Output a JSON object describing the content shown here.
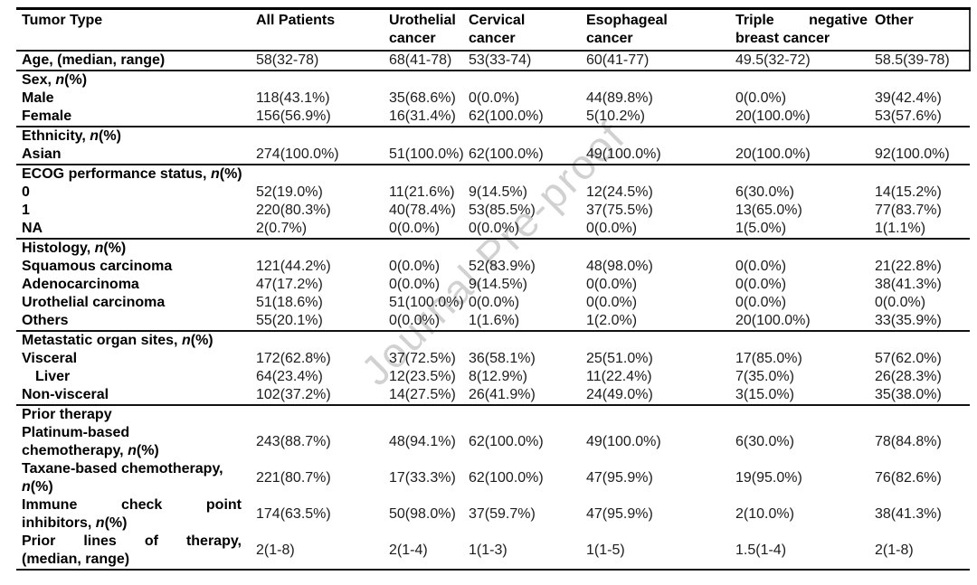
{
  "page": {
    "watermark_text": "Journal Pre-proof",
    "watermark_color": "#c6c6c6",
    "background_color": "#ffffff",
    "text_color": "#000000"
  },
  "table": {
    "header": [
      {
        "lines": [
          "Tumor Type"
        ],
        "justify": false
      },
      {
        "lines": [
          "All Patients"
        ],
        "justify": false
      },
      {
        "lines": [
          "Urothelial",
          "cancer"
        ],
        "justify": false
      },
      {
        "lines": [
          "Cervical",
          "cancer"
        ],
        "justify": false
      },
      {
        "lines": [
          "Esophageal",
          "cancer"
        ],
        "justify": false
      },
      {
        "lines": [
          "Triple negative",
          "breast cancer"
        ],
        "justify": true
      },
      {
        "lines": [
          "Other"
        ],
        "justify": false
      }
    ],
    "rows": [
      {
        "label_lines": [
          "Age, (median, range)"
        ],
        "section": false,
        "indent": false,
        "justify": false,
        "rule_after": true,
        "values": [
          "58(32-78)",
          "68(41-78)",
          "53(33-74)",
          "60(41-77)",
          "49.5(32-72)",
          "58.5(39-78)"
        ]
      },
      {
        "label_lines": [
          "Sex, n(%)"
        ],
        "section": true,
        "indent": false,
        "justify": false,
        "rule_after": false,
        "values": []
      },
      {
        "label_lines": [
          "Male"
        ],
        "section": false,
        "indent": false,
        "justify": false,
        "rule_after": false,
        "values": [
          "118(43.1%)",
          "35(68.6%)",
          "0(0.0%)",
          "44(89.8%)",
          "0(0.0%)",
          "39(42.4%)"
        ]
      },
      {
        "label_lines": [
          "Female"
        ],
        "section": false,
        "indent": false,
        "justify": false,
        "rule_after": true,
        "values": [
          "156(56.9%)",
          "16(31.4%)",
          "62(100.0%)",
          "5(10.2%)",
          "20(100.0%)",
          "53(57.6%)"
        ]
      },
      {
        "label_lines": [
          "Ethnicity, n(%)"
        ],
        "section": true,
        "indent": false,
        "justify": false,
        "rule_after": false,
        "values": []
      },
      {
        "label_lines": [
          "Asian"
        ],
        "section": false,
        "indent": false,
        "justify": false,
        "rule_after": true,
        "values": [
          "274(100.0%)",
          "51(100.0%)",
          "62(100.0%)",
          "49(100.0%)",
          "20(100.0%)",
          "92(100.0%)"
        ]
      },
      {
        "label_lines": [
          "ECOG performance status, n(%)"
        ],
        "section": true,
        "indent": false,
        "justify": false,
        "rule_after": false,
        "values": []
      },
      {
        "label_lines": [
          "0"
        ],
        "section": false,
        "indent": false,
        "justify": false,
        "rule_after": false,
        "values": [
          "52(19.0%)",
          "11(21.6%)",
          "9(14.5%)",
          "12(24.5%)",
          "6(30.0%)",
          "14(15.2%)"
        ]
      },
      {
        "label_lines": [
          "1"
        ],
        "section": false,
        "indent": false,
        "justify": false,
        "rule_after": false,
        "values": [
          "220(80.3%)",
          "40(78.4%)",
          "53(85.5%)",
          "37(75.5%)",
          "13(65.0%)",
          "77(83.7%)"
        ]
      },
      {
        "label_lines": [
          "NA"
        ],
        "section": false,
        "indent": false,
        "justify": false,
        "rule_after": true,
        "values": [
          "2(0.7%)",
          "0(0.0%)",
          "0(0.0%)",
          "0(0.0%)",
          "1(5.0%)",
          "1(1.1%)"
        ]
      },
      {
        "label_lines": [
          "Histology, n(%)"
        ],
        "section": true,
        "indent": false,
        "justify": false,
        "rule_after": false,
        "values": []
      },
      {
        "label_lines": [
          "Squamous carcinoma"
        ],
        "section": false,
        "indent": false,
        "justify": false,
        "rule_after": false,
        "values": [
          "121(44.2%)",
          "0(0.0%)",
          "52(83.9%)",
          "48(98.0%)",
          "0(0.0%)",
          "21(22.8%)"
        ]
      },
      {
        "label_lines": [
          "Adenocarcinoma"
        ],
        "section": false,
        "indent": false,
        "justify": false,
        "rule_after": false,
        "values": [
          "47(17.2%)",
          "0(0.0%)",
          "9(14.5%)",
          "0(0.0%)",
          "0(0.0%)",
          "38(41.3%)"
        ]
      },
      {
        "label_lines": [
          "Urothelial carcinoma"
        ],
        "section": false,
        "indent": false,
        "justify": false,
        "rule_after": false,
        "values": [
          "51(18.6%)",
          "51(100.0%)",
          "0(0.0%)",
          "0(0.0%)",
          "0(0.0%)",
          "0(0.0%)"
        ]
      },
      {
        "label_lines": [
          "Others"
        ],
        "section": false,
        "indent": false,
        "justify": false,
        "rule_after": true,
        "values": [
          "55(20.1%)",
          "0(0.0%)",
          "1(1.6%)",
          "1(2.0%)",
          "20(100.0%)",
          "33(35.9%)"
        ]
      },
      {
        "label_lines": [
          "Metastatic organ sites, n(%)"
        ],
        "section": true,
        "indent": false,
        "justify": false,
        "rule_after": false,
        "values": []
      },
      {
        "label_lines": [
          "Visceral"
        ],
        "section": false,
        "indent": false,
        "justify": false,
        "rule_after": false,
        "values": [
          "172(62.8%)",
          "37(72.5%)",
          "36(58.1%)",
          "25(51.0%)",
          "17(85.0%)",
          "57(62.0%)"
        ]
      },
      {
        "label_lines": [
          "Liver"
        ],
        "section": false,
        "indent": true,
        "justify": false,
        "rule_after": false,
        "values": [
          "64(23.4%)",
          "12(23.5%)",
          "8(12.9%)",
          "11(22.4%)",
          "7(35.0%)",
          "26(28.3%)"
        ]
      },
      {
        "label_lines": [
          "Non-visceral"
        ],
        "section": false,
        "indent": false,
        "justify": false,
        "rule_after": true,
        "values": [
          "102(37.2%)",
          "14(27.5%)",
          "26(41.9%)",
          "24(49.0%)",
          "3(15.0%)",
          "35(38.0%)"
        ]
      },
      {
        "label_lines": [
          "Prior therapy"
        ],
        "section": true,
        "indent": false,
        "justify": false,
        "rule_after": false,
        "values": []
      },
      {
        "label_lines": [
          "Platinum-based",
          "chemotherapy, n(%)"
        ],
        "section": false,
        "indent": false,
        "justify": false,
        "rule_after": false,
        "values": [
          "243(88.7%)",
          "48(94.1%)",
          "62(100.0%)",
          "49(100.0%)",
          "6(30.0%)",
          "78(84.8%)"
        ]
      },
      {
        "label_lines": [
          "Taxane-based chemotherapy,",
          "n(%)"
        ],
        "section": false,
        "indent": false,
        "justify": false,
        "rule_after": false,
        "values": [
          "221(80.7%)",
          "17(33.3%)",
          "62(100.0%)",
          "47(95.9%)",
          "19(95.0%)",
          "76(82.6%)"
        ]
      },
      {
        "label_lines": [
          "Immune check point",
          "inhibitors, n(%)"
        ],
        "section": false,
        "indent": false,
        "justify": true,
        "rule_after": false,
        "values": [
          "174(63.5%)",
          "50(98.0%)",
          "37(59.7%)",
          "47(95.9%)",
          "2(10.0%)",
          "38(41.3%)"
        ]
      },
      {
        "label_lines": [
          "Prior lines of therapy,",
          "(median, range)"
        ],
        "section": false,
        "indent": false,
        "justify": true,
        "rule_after": false,
        "values": [
          "2(1-8)",
          "2(1-4)",
          "1(1-3)",
          "1(1-5)",
          "1.5(1-4)",
          "2(1-8)"
        ]
      }
    ]
  }
}
